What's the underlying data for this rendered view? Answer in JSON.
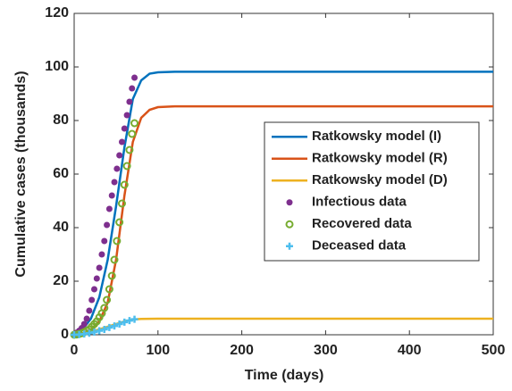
{
  "chart_data": {
    "type": "line",
    "xlabel": "Time (days)",
    "ylabel": "Cumulative cases (thousands)",
    "xlim": [
      0,
      500
    ],
    "ylim": [
      0,
      120
    ],
    "xticks": [
      0,
      100,
      200,
      300,
      400,
      500
    ],
    "yticks": [
      0,
      20,
      40,
      60,
      80,
      100,
      120
    ],
    "legend": "right",
    "series": [
      {
        "name": "Ratkowsky model (I)",
        "color": "#0072bd",
        "style": "line",
        "x": [
          0,
          10,
          20,
          30,
          40,
          50,
          60,
          70,
          80,
          90,
          100,
          120,
          150,
          200,
          300,
          400,
          500
        ],
        "values": [
          0.5,
          2,
          6,
          14,
          28,
          48,
          70,
          88,
          95,
          97.5,
          98,
          98.2,
          98.2,
          98.2,
          98.2,
          98.2,
          98.2
        ]
      },
      {
        "name": "Ratkowsky model (R)",
        "color": "#d95319",
        "style": "line",
        "x": [
          0,
          10,
          20,
          30,
          40,
          50,
          60,
          70,
          80,
          90,
          100,
          120,
          150,
          200,
          300,
          400,
          500
        ],
        "values": [
          0,
          0.5,
          2,
          5,
          12,
          28,
          52,
          72,
          81,
          84,
          85,
          85.3,
          85.3,
          85.3,
          85.3,
          85.3,
          85.3
        ]
      },
      {
        "name": "Ratkowsky model (D)",
        "color": "#edb120",
        "style": "line",
        "x": [
          0,
          10,
          20,
          30,
          40,
          50,
          60,
          70,
          80,
          100,
          200,
          300,
          400,
          500
        ],
        "values": [
          0.1,
          0.5,
          1.2,
          2,
          3,
          4,
          5,
          5.7,
          5.9,
          6,
          6,
          6,
          6,
          6
        ]
      },
      {
        "name": "Infectious data",
        "color": "#7e2f8e",
        "style": "dot",
        "x": [
          0,
          3,
          6,
          9,
          12,
          15,
          18,
          21,
          24,
          27,
          30,
          33,
          36,
          39,
          42,
          45,
          48,
          51,
          54,
          57,
          60,
          63,
          66,
          69,
          72
        ],
        "values": [
          0.3,
          0.8,
          1.5,
          2.5,
          4,
          6,
          9,
          13,
          17,
          21,
          25,
          30,
          35,
          41,
          47,
          52,
          57,
          62,
          67,
          72,
          77,
          82,
          87,
          92,
          96
        ]
      },
      {
        "name": "Recovered data",
        "color": "#77ac30",
        "style": "circle",
        "x": [
          0,
          3,
          6,
          9,
          12,
          15,
          18,
          21,
          24,
          27,
          30,
          33,
          36,
          39,
          42,
          45,
          48,
          51,
          54,
          57,
          60,
          63,
          66,
          69,
          72
        ],
        "values": [
          0,
          0.1,
          0.3,
          0.6,
          1,
          1.5,
          2,
          3,
          4,
          5,
          6.5,
          8,
          10,
          13,
          17,
          22,
          28,
          35,
          42,
          49,
          56,
          63,
          69,
          75,
          79
        ]
      },
      {
        "name": "Deceased data",
        "color": "#4dbeee",
        "style": "plus",
        "x": [
          0,
          6,
          12,
          18,
          24,
          30,
          36,
          42,
          48,
          54,
          60,
          66,
          72
        ],
        "values": [
          0,
          0.1,
          0.3,
          0.6,
          1,
          1.5,
          2,
          2.7,
          3.3,
          4,
          4.7,
          5.3,
          5.8
        ]
      }
    ]
  }
}
